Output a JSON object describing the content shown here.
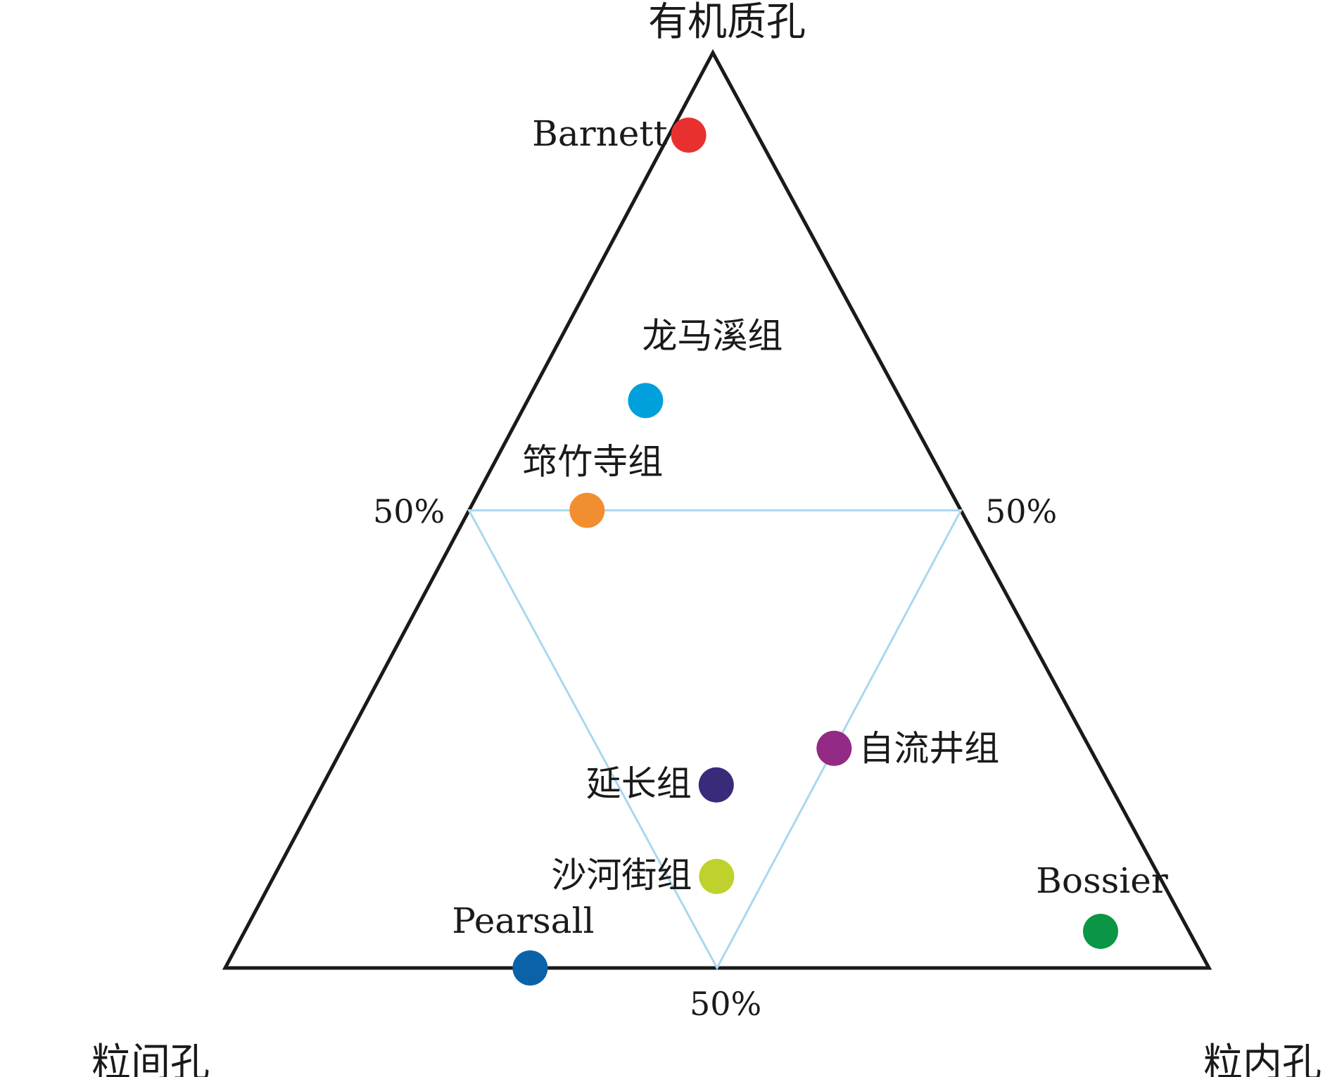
{
  "chart_data": {
    "type": "ternary-scatter",
    "vertex_labels": {
      "top": "有机质孔",
      "bottom_left": "粒间孔",
      "bottom_right": "粒内孔"
    },
    "midline_labels": [
      "50%",
      "50%",
      "50%"
    ],
    "components": [
      "有机质孔",
      "粒间孔",
      "粒内孔"
    ],
    "points": [
      {
        "label": "Barnett",
        "organic": 0.91,
        "intergranular": 0.07,
        "intragranular": 0.02,
        "color": "#e8312f"
      },
      {
        "label": "龙马溪组",
        "organic": 0.62,
        "intergranular": 0.26,
        "intragranular": 0.12,
        "color": "#00a0dc"
      },
      {
        "label": "筇竹寺组",
        "organic": 0.5,
        "intergranular": 0.38,
        "intragranular": 0.12,
        "color": "#f18f30"
      },
      {
        "label": "自流井组",
        "organic": 0.24,
        "intergranular": 0.26,
        "intragranular": 0.5,
        "color": "#932a83"
      },
      {
        "label": "延长组",
        "organic": 0.2,
        "intergranular": 0.4,
        "intragranular": 0.4,
        "color": "#3a2a7a"
      },
      {
        "label": "沙河街组",
        "organic": 0.1,
        "intergranular": 0.45,
        "intragranular": 0.45,
        "color": "#bfd12c"
      },
      {
        "label": "Pearsall",
        "organic": 0.0,
        "intergranular": 0.69,
        "intragranular": 0.31,
        "color": "#0a63a8"
      },
      {
        "label": "Bossier",
        "organic": 0.04,
        "intergranular": 0.09,
        "intragranular": 0.87,
        "color": "#0a9645"
      }
    ]
  }
}
